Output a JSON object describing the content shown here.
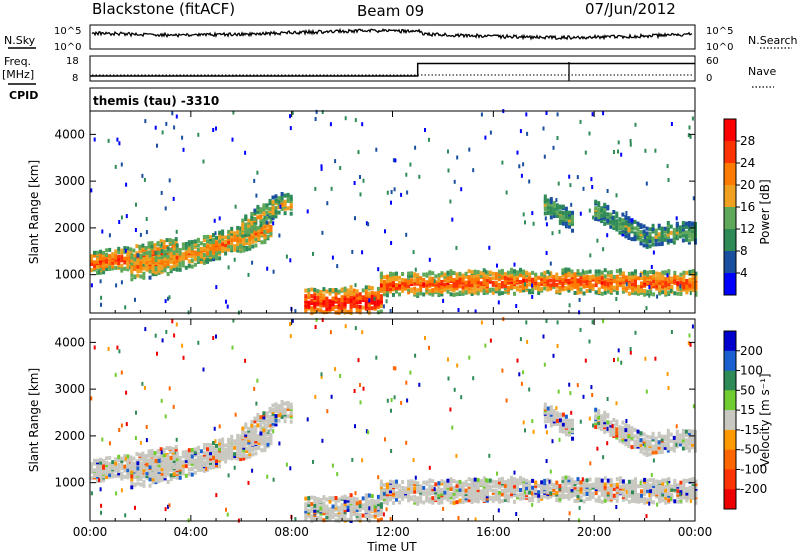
{
  "header": {
    "station": "Blackstone (fitACF)",
    "beam": "Beam 09",
    "date": "07/Jun/2012"
  },
  "labels": {
    "nsky": "N.Sky",
    "nsearch": "N.Search",
    "freq": "Freq.",
    "mhz": "[MHz]",
    "cpid": "CPID",
    "nave": "Nave",
    "cpid_value": "themis (tau) -3310"
  },
  "colors": {
    "power_scale": [
      "#0000ff",
      "#1a4fa0",
      "#2e8b57",
      "#5fa85a",
      "#f0a020",
      "#ff7a00",
      "#ff3300",
      "#ff0000"
    ],
    "velocity_scale": [
      "#0000cc",
      "#1a5fd0",
      "#2e8b57",
      "#70cc30",
      "#c8c8c0",
      "#ff9900",
      "#ff6600",
      "#ff3300",
      "#ee0000"
    ]
  },
  "chart_data": [
    {
      "type": "line",
      "panel": "noise",
      "left_label": "N.Sky",
      "right_label": "N.Search",
      "left_ticks": [
        "10^5",
        "10^0"
      ],
      "right_ticks": [
        "10^5",
        "10^0"
      ],
      "x": [
        "00:00",
        "04:00",
        "08:00",
        "12:00",
        "16:00",
        "20:00",
        "00:00"
      ]
    },
    {
      "type": "line",
      "panel": "frequency-nave",
      "left_label": "Freq. [MHz]",
      "right_label": "Nave",
      "left_ticks": [
        "18",
        "8"
      ],
      "right_ticks": [
        "60",
        "0"
      ],
      "series": [
        {
          "name": "Freq.",
          "x": [
            0,
            13.0,
            13.0,
            24
          ],
          "y": [
            10,
            10,
            15,
            15
          ]
        }
      ]
    },
    {
      "type": "heatmap",
      "panel": "power",
      "ylabel": "Slant Range [km]",
      "yticks": [
        "1000",
        "2000",
        "3000",
        "4000"
      ],
      "xticks": [
        "00:00",
        "04:00",
        "08:00",
        "12:00",
        "16:00",
        "20:00",
        "00:00"
      ],
      "ylim": [
        180,
        4500
      ],
      "xlim": [
        0,
        24
      ],
      "colorbar_label": "Power [dB]",
      "colorbar_ticks": [
        "4",
        "8",
        "12",
        "16",
        "20",
        "24",
        "28"
      ],
      "bands": [
        {
          "t": [
            0.0,
            0.8,
            1.6,
            2.4,
            3.4
          ],
          "r": [
            1250,
            1300,
            1350,
            1450,
            1550
          ],
          "w": 220,
          "level": 6
        },
        {
          "t": [
            1.6,
            2.8,
            4.0,
            5.2,
            6.4,
            7.2
          ],
          "r": [
            1150,
            1250,
            1450,
            1650,
            1850,
            2050
          ],
          "w": 260,
          "level": 5
        },
        {
          "t": [
            6.0,
            6.8,
            7.5,
            8.0
          ],
          "r": [
            2000,
            2300,
            2500,
            2500
          ],
          "w": 220,
          "level": 4
        },
        {
          "t": [
            8.5,
            9.5,
            10.5,
            11.5
          ],
          "r": [
            400,
            380,
            420,
            450
          ],
          "w": 300,
          "level": 7
        },
        {
          "t": [
            11.5,
            13.0,
            14.5,
            16.0,
            17.5,
            19.0,
            20.5,
            22.0,
            24.0
          ],
          "r": [
            780,
            800,
            820,
            840,
            860,
            850,
            840,
            830,
            820
          ],
          "w": 240,
          "level": 6
        },
        {
          "t": [
            18.0,
            18.6,
            19.2
          ],
          "r": [
            2500,
            2300,
            2100
          ],
          "w": 200,
          "level": 3
        },
        {
          "t": [
            20.0,
            21.0,
            22.0,
            23.0,
            24.0
          ],
          "r": [
            2400,
            2100,
            1800,
            1900,
            1900
          ],
          "w": 200,
          "level": 3
        }
      ]
    },
    {
      "type": "heatmap",
      "panel": "velocity",
      "ylabel": "Slant Range [km]",
      "yticks": [
        "1000",
        "2000",
        "3000",
        "4000"
      ],
      "xticks": [
        "00:00",
        "04:00",
        "08:00",
        "12:00",
        "16:00",
        "20:00",
        "00:00"
      ],
      "ylim": [
        180,
        4500
      ],
      "xlim": [
        0,
        24
      ],
      "xlabel": "Time UT",
      "colorbar_label": "Velocity [m s⁻¹]",
      "colorbar_ticks": [
        "200",
        "100",
        "50",
        "15",
        "-15",
        "-50",
        "-100",
        "-200"
      ]
    }
  ]
}
